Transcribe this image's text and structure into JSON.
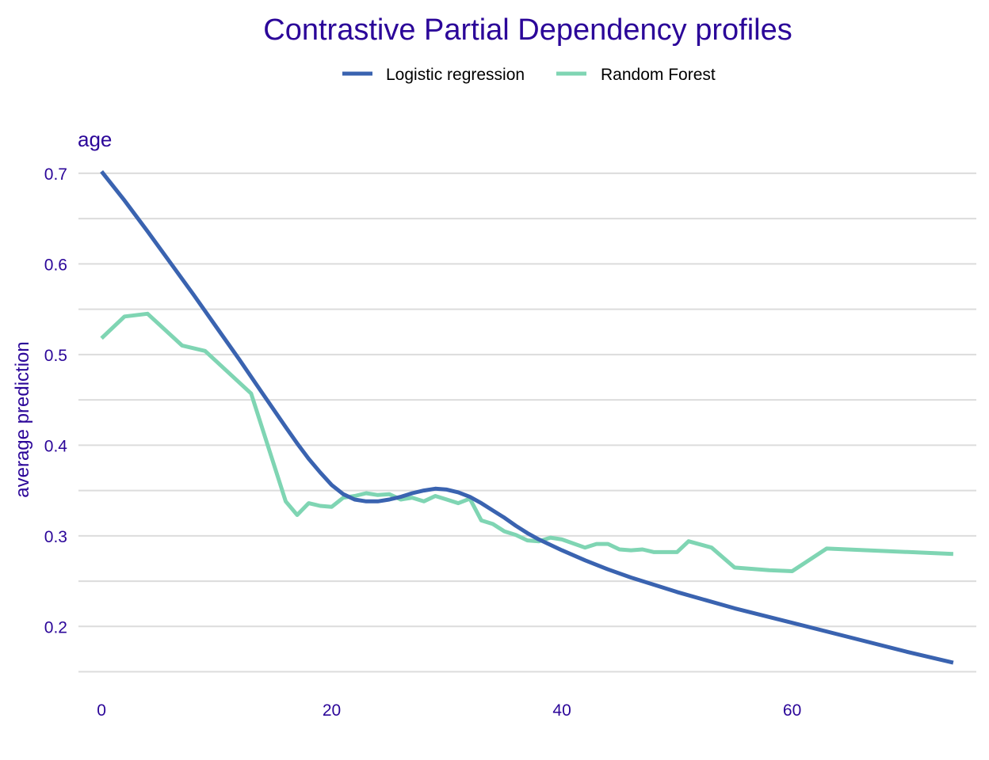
{
  "chart_data": {
    "type": "line",
    "title": "Contrastive Partial Dependency profiles",
    "panel_label": "age",
    "xlabel": "",
    "ylabel": "average prediction",
    "xlim": [
      -2,
      76
    ],
    "ylim": [
      0.14,
      0.72
    ],
    "x_ticks": [
      0,
      20,
      40,
      60
    ],
    "y_ticks": [
      0.2,
      0.3,
      0.4,
      0.5,
      0.6,
      0.7
    ],
    "y_gridlines": [
      0.15,
      0.2,
      0.25,
      0.3,
      0.35,
      0.4,
      0.45,
      0.5,
      0.55,
      0.6,
      0.65,
      0.7
    ],
    "grid": true,
    "legend_position": "top",
    "series": [
      {
        "name": "Logistic regression",
        "color": "#3a63b0",
        "x": [
          0,
          2,
          4,
          6,
          8,
          10,
          12,
          14,
          16,
          17,
          18,
          19,
          20,
          21,
          22,
          23,
          24,
          25,
          26,
          27,
          28,
          29,
          30,
          31,
          32,
          33,
          34,
          35,
          36,
          37,
          38,
          40,
          42,
          44,
          46,
          48,
          50,
          55,
          60,
          65,
          70,
          74
        ],
        "y": [
          0.702,
          0.67,
          0.636,
          0.601,
          0.566,
          0.53,
          0.494,
          0.457,
          0.42,
          0.402,
          0.385,
          0.37,
          0.356,
          0.346,
          0.34,
          0.338,
          0.338,
          0.34,
          0.343,
          0.347,
          0.35,
          0.352,
          0.351,
          0.348,
          0.343,
          0.336,
          0.328,
          0.32,
          0.311,
          0.303,
          0.296,
          0.284,
          0.273,
          0.263,
          0.254,
          0.246,
          0.238,
          0.22,
          0.204,
          0.188,
          0.172,
          0.16
        ]
      },
      {
        "name": "Random Forest",
        "color": "#7fd5b3",
        "x": [
          0,
          2,
          4,
          7,
          9,
          13,
          16,
          17,
          18,
          19,
          20,
          21,
          22,
          23,
          24,
          25,
          26,
          27,
          28,
          29,
          30,
          31,
          32,
          33,
          34,
          35,
          36,
          37,
          38,
          39,
          40,
          42,
          43,
          44,
          45,
          46,
          47,
          48,
          49,
          50,
          51,
          53,
          55,
          58,
          60,
          63,
          74
        ],
        "y": [
          0.518,
          0.542,
          0.545,
          0.51,
          0.504,
          0.457,
          0.338,
          0.323,
          0.336,
          0.333,
          0.332,
          0.342,
          0.344,
          0.347,
          0.345,
          0.346,
          0.34,
          0.342,
          0.338,
          0.344,
          0.34,
          0.336,
          0.341,
          0.317,
          0.313,
          0.305,
          0.301,
          0.295,
          0.294,
          0.298,
          0.296,
          0.287,
          0.291,
          0.291,
          0.285,
          0.284,
          0.285,
          0.282,
          0.282,
          0.282,
          0.294,
          0.287,
          0.265,
          0.262,
          0.261,
          0.286,
          0.28
        ]
      }
    ]
  },
  "colors": {
    "text": "#2b0699",
    "grid": "#dcdcdc"
  }
}
